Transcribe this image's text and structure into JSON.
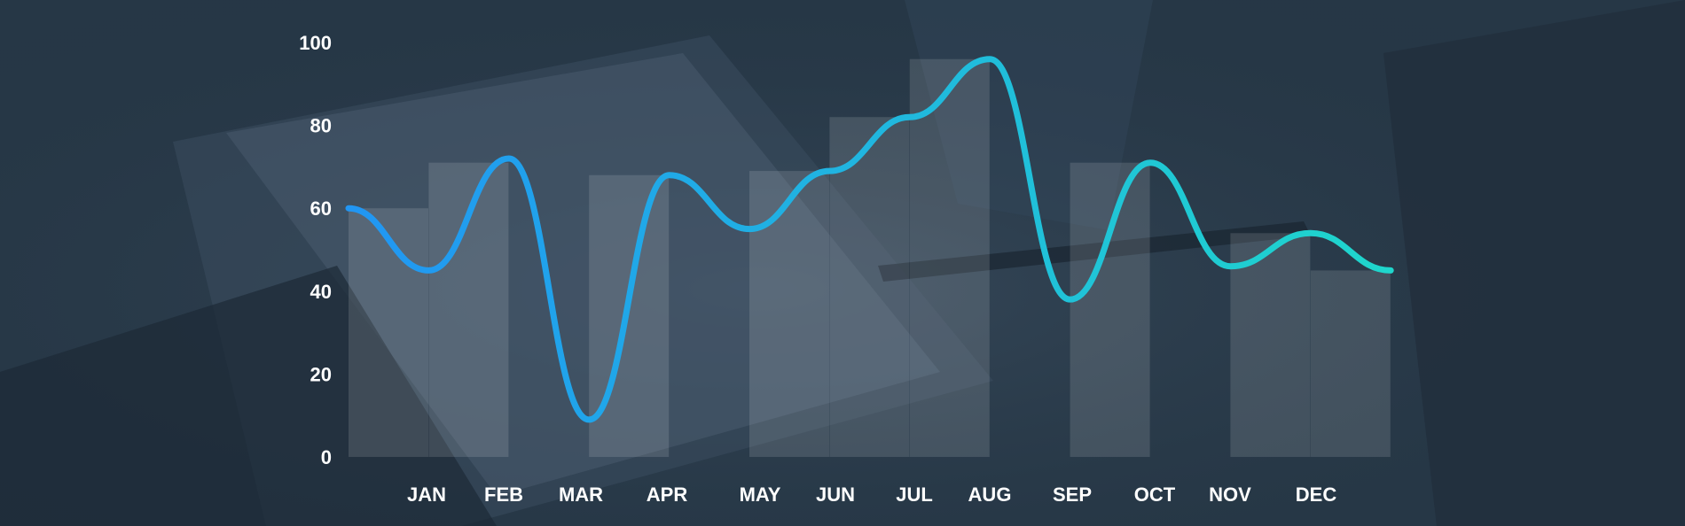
{
  "chart_data": {
    "type": "line",
    "title": "",
    "xlabel": "",
    "ylabel": "",
    "ylim": [
      0,
      100
    ],
    "yticks": [
      "0",
      "20",
      "40",
      "60",
      "80",
      "100"
    ],
    "categories": [
      "JAN",
      "FEB",
      "MAR",
      "APR",
      "MAY",
      "JUN",
      "JUL",
      "AUG",
      "SEP",
      "OCT",
      "NOV",
      "DEC"
    ],
    "line_points": [
      60,
      45,
      72,
      9,
      68,
      55,
      69,
      82,
      96,
      38,
      71,
      46,
      54,
      45
    ],
    "bar_values": [
      60,
      71,
      0,
      68,
      0,
      69,
      82,
      96,
      0,
      71,
      0,
      54,
      45
    ],
    "grid": false,
    "line_color_start": "#2196f3",
    "line_color_end": "#1fd6cc",
    "bar_color": "#ffffff",
    "background_color": "#263746"
  }
}
